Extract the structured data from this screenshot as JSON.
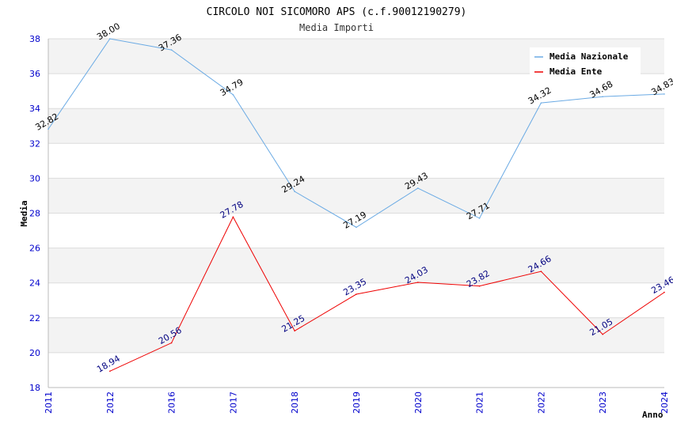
{
  "chart_data": {
    "type": "line",
    "title": "CIRCOLO NOI SICOMORO APS (c.f.90012190279)",
    "subtitle": "Media Importi",
    "xlabel": "Anno",
    "ylabel": "Media",
    "categories": [
      "2011",
      "2012",
      "2016",
      "2017",
      "2018",
      "2019",
      "2020",
      "2021",
      "2022",
      "2023",
      "2024"
    ],
    "ylim": [
      18,
      38
    ],
    "yticks": [
      18,
      20,
      22,
      24,
      26,
      28,
      30,
      32,
      34,
      36,
      38
    ],
    "grid": true,
    "legend_position": "top-right",
    "series": [
      {
        "name": "Media Nazionale",
        "color": "#6aaae4",
        "label_color": "#000000",
        "values": [
          32.82,
          38.0,
          37.36,
          34.79,
          29.24,
          27.19,
          29.43,
          27.71,
          34.32,
          34.68,
          34.83
        ],
        "labels": [
          "32.82",
          "38.00",
          "37.36",
          "34.79",
          "29.24",
          "27.19",
          "29.43",
          "27.71",
          "34.32",
          "34.68",
          "34.83"
        ]
      },
      {
        "name": "Media Ente",
        "color": "#ee0000",
        "label_color": "#000080",
        "values": [
          null,
          18.94,
          20.56,
          27.78,
          21.25,
          23.35,
          24.03,
          23.82,
          24.66,
          21.05,
          23.46
        ],
        "labels": [
          null,
          "18.94",
          "20.56",
          "27.78",
          "21.25",
          "23.35",
          "24.03",
          "23.82",
          "24.66",
          "21.05",
          "23.46"
        ]
      }
    ]
  }
}
